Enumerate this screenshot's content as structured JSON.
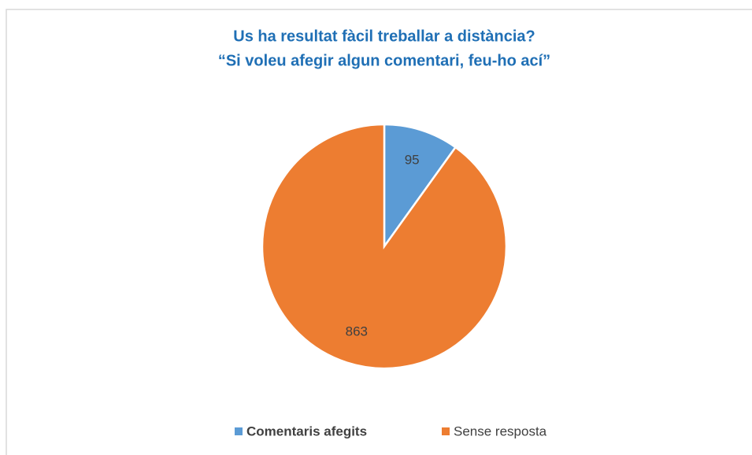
{
  "chart_data": {
    "type": "pie",
    "title": [
      "Us ha resultat fàcil treballar a distància?",
      "“Si voleu afegir algun comentari, feu-ho ací”"
    ],
    "categories": [
      "Comentaris afegits",
      "Sense resposta"
    ],
    "values": [
      95,
      863
    ],
    "colors": [
      "#5b9bd5",
      "#ed7d31"
    ],
    "legend": "bottom"
  }
}
